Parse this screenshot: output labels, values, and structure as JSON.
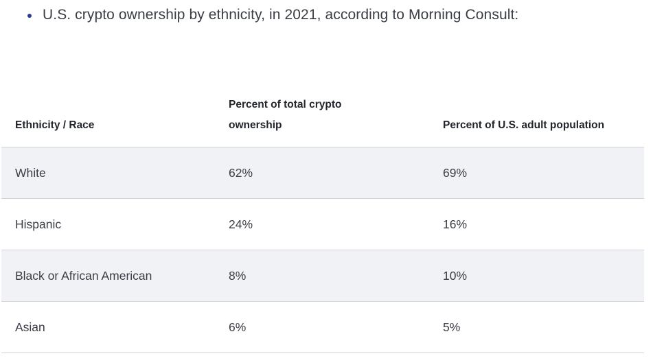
{
  "bullet": {
    "text": "U.S. crypto ownership by ethnicity, in 2021, according to Morning Consult:"
  },
  "table": {
    "headers": [
      "Ethnicity / Race",
      "Percent of total crypto ownership",
      "Percent of U.S. adult population"
    ],
    "rows": [
      [
        "White",
        "62%",
        "69%"
      ],
      [
        "Hispanic",
        "24%",
        "16%"
      ],
      [
        "Black or African American",
        "8%",
        "10%"
      ],
      [
        "Asian",
        "6%",
        "5%"
      ]
    ]
  },
  "colors": {
    "bullet": "#2a3f8f",
    "row_shade": "#f1f2f6",
    "divider": "#cfd2d8"
  }
}
